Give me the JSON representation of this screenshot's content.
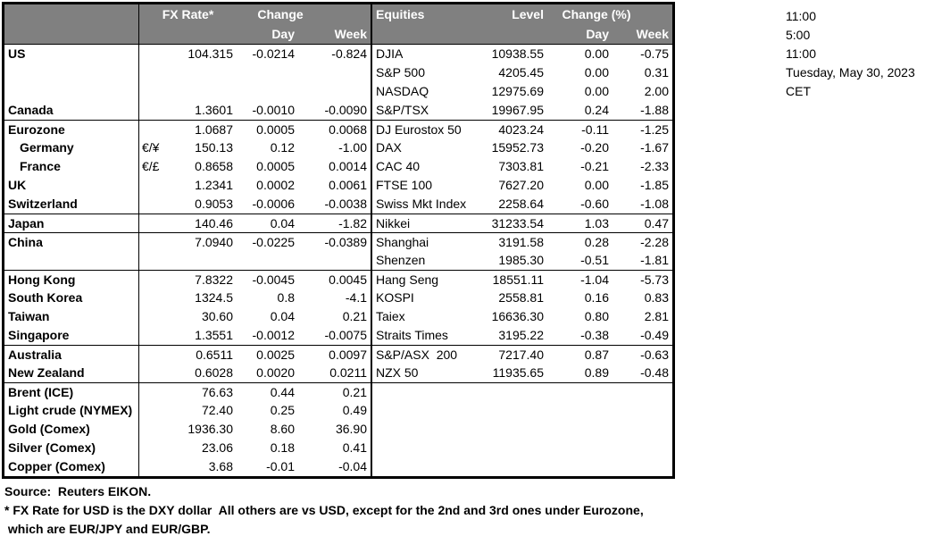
{
  "table": {
    "header": {
      "fx_rate": "FX Rate*",
      "change": "Change",
      "equities": "Equities",
      "level": "Level",
      "change_pct": "Change (%)",
      "fx_day": "Day",
      "fx_week": "Week",
      "eq_day": "Day",
      "eq_week": "Week"
    },
    "rows": [
      {
        "sect": false,
        "indent": false,
        "label": "US",
        "pair": "",
        "rate": "104.315",
        "day": "-0.0214",
        "week": "-0.824",
        "index": "DJIA",
        "level": "10938.55",
        "iday": "0.00",
        "iweek": "-0.75"
      },
      {
        "sect": false,
        "indent": false,
        "label": "",
        "pair": "",
        "rate": "",
        "day": "",
        "week": "",
        "index": "S&P 500",
        "level": "4205.45",
        "iday": "0.00",
        "iweek": "0.31"
      },
      {
        "sect": false,
        "indent": false,
        "label": "",
        "pair": "",
        "rate": "",
        "day": "",
        "week": "",
        "index": "NASDAQ",
        "level": "12975.69",
        "iday": "0.00",
        "iweek": "2.00"
      },
      {
        "sect": false,
        "indent": false,
        "label": "Canada",
        "pair": "",
        "rate": "1.3601",
        "day": "-0.0010",
        "week": "-0.0090",
        "index": "S&P/TSX",
        "level": "19967.95",
        "iday": "0.24",
        "iweek": "-1.88"
      },
      {
        "sect": true,
        "indent": false,
        "label": "Eurozone",
        "pair": "",
        "rate": "1.0687",
        "day": "0.0005",
        "week": "0.0068",
        "index": "DJ Eurostox 50",
        "level": "4023.24",
        "iday": "-0.11",
        "iweek": "-1.25"
      },
      {
        "sect": false,
        "indent": true,
        "label": "Germany",
        "pair": "€/¥",
        "rate": "150.13",
        "day": "0.12",
        "week": "-1.00",
        "index": "DAX",
        "level": "15952.73",
        "iday": "-0.20",
        "iweek": "-1.67"
      },
      {
        "sect": false,
        "indent": true,
        "label": "France",
        "pair": "€/£",
        "rate": "0.8658",
        "day": "0.0005",
        "week": "0.0014",
        "index": "CAC 40",
        "level": "7303.81",
        "iday": "-0.21",
        "iweek": "-2.33"
      },
      {
        "sect": false,
        "indent": false,
        "label": "UK",
        "pair": "",
        "rate": "1.2341",
        "day": "0.0002",
        "week": "0.0061",
        "index": "FTSE 100",
        "level": "7627.20",
        "iday": "0.00",
        "iweek": "-1.85"
      },
      {
        "sect": false,
        "indent": false,
        "label": "Switzerland",
        "pair": "",
        "rate": "0.9053",
        "day": "-0.0006",
        "week": "-0.0038",
        "index": "Swiss Mkt Index",
        "level": "2258.64",
        "iday": "-0.60",
        "iweek": "-1.08"
      },
      {
        "sect": true,
        "indent": false,
        "label": "Japan",
        "pair": "",
        "rate": "140.46",
        "day": "0.04",
        "week": "-1.82",
        "index": "Nikkei",
        "level": "31233.54",
        "iday": "1.03",
        "iweek": "0.47"
      },
      {
        "sect": true,
        "indent": false,
        "label": "China",
        "pair": "",
        "rate": "7.0940",
        "day": "-0.0225",
        "week": "-0.0389",
        "index": "Shanghai",
        "level": "3191.58",
        "iday": "0.28",
        "iweek": "-2.28"
      },
      {
        "sect": false,
        "indent": false,
        "label": "",
        "pair": "",
        "rate": "",
        "day": "",
        "week": "",
        "index": "Shenzen",
        "level": "1985.30",
        "iday": "-0.51",
        "iweek": "-1.81"
      },
      {
        "sect": true,
        "indent": false,
        "label": "Hong Kong",
        "pair": "",
        "rate": "7.8322",
        "day": "-0.0045",
        "week": "0.0045",
        "index": "Hang Seng",
        "level": "18551.11",
        "iday": "-1.04",
        "iweek": "-5.73"
      },
      {
        "sect": false,
        "indent": false,
        "label": "South Korea",
        "pair": "",
        "rate": "1324.5",
        "day": "0.8",
        "week": "-4.1",
        "index": "KOSPI",
        "level": "2558.81",
        "iday": "0.16",
        "iweek": "0.83"
      },
      {
        "sect": false,
        "indent": false,
        "label": "Taiwan",
        "pair": "",
        "rate": "30.60",
        "day": "0.04",
        "week": "0.21",
        "index": "Taiex",
        "level": "16636.30",
        "iday": "0.80",
        "iweek": "2.81"
      },
      {
        "sect": false,
        "indent": false,
        "label": "Singapore",
        "pair": "",
        "rate": "1.3551",
        "day": "-0.0012",
        "week": "-0.0075",
        "index": "Straits Times",
        "level": "3195.22",
        "iday": "-0.38",
        "iweek": "-0.49"
      },
      {
        "sect": true,
        "indent": false,
        "label": "Australia",
        "pair": "",
        "rate": "0.6511",
        "day": "0.0025",
        "week": "0.0097",
        "index": "S&P/ASX  200",
        "level": "7217.40",
        "iday": "0.87",
        "iweek": "-0.63"
      },
      {
        "sect": false,
        "indent": false,
        "label": "New Zealand",
        "pair": "",
        "rate": "0.6028",
        "day": "0.0020",
        "week": "0.0211",
        "index": "NZX 50",
        "level": "11935.65",
        "iday": "0.89",
        "iweek": "-0.48"
      },
      {
        "sect": true,
        "indent": false,
        "label": "Brent (ICE)",
        "pair": "",
        "rate": "76.63",
        "day": "0.44",
        "week": "0.21",
        "index": "",
        "level": "",
        "iday": "",
        "iweek": ""
      },
      {
        "sect": false,
        "indent": false,
        "label": "Light crude (NYMEX)",
        "pair": "",
        "rate": "72.40",
        "day": "0.25",
        "week": "0.49",
        "index": "",
        "level": "",
        "iday": "",
        "iweek": ""
      },
      {
        "sect": false,
        "indent": false,
        "label": "Gold (Comex)",
        "pair": "",
        "rate": "1936.30",
        "day": "8.60",
        "week": "36.90",
        "index": "",
        "level": "",
        "iday": "",
        "iweek": ""
      },
      {
        "sect": false,
        "indent": false,
        "label": "Silver (Comex)",
        "pair": "",
        "rate": "23.06",
        "day": "0.18",
        "week": "0.41",
        "index": "",
        "level": "",
        "iday": "",
        "iweek": ""
      },
      {
        "sect": false,
        "indent": false,
        "label": "Copper (Comex)",
        "pair": "",
        "rate": "3.68",
        "day": "-0.01",
        "week": "-0.04",
        "index": "",
        "level": "",
        "iday": "",
        "iweek": ""
      }
    ]
  },
  "timestamps": [
    "11:00",
    "5:00",
    "11:00",
    "Tuesday, May 30, 2023",
    "CET"
  ],
  "footer": {
    "source": "Source:  Reuters EIKON.",
    "note1": "* FX Rate for USD is the DXY dollar  All others are vs USD, except for the 2nd and 3rd ones under Eurozone,",
    "note2": " which are EUR/JPY and EUR/GBP."
  },
  "colors": {
    "header_bg": "#808080",
    "header_text": "#ffffff",
    "border": "#000000",
    "text": "#000000"
  }
}
